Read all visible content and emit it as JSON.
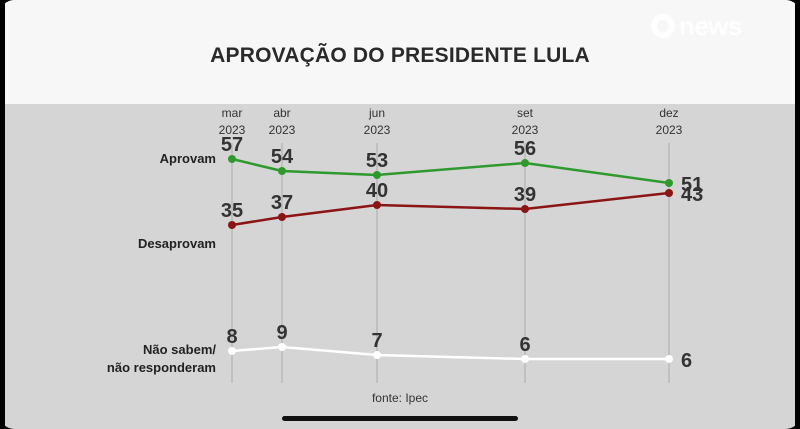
{
  "header": {
    "title": "APROVAÇÃO DO PRESIDENTE LULA",
    "logo_text": "news"
  },
  "source_label": "fonte: Ipec",
  "chart_data": {
    "type": "line",
    "title": "APROVAÇÃO DO PRESIDENTE LULA",
    "x": [
      {
        "month": "mar",
        "year": "2023"
      },
      {
        "month": "abr",
        "year": "2023"
      },
      {
        "month": "jun",
        "year": "2023"
      },
      {
        "month": "set",
        "year": "2023"
      },
      {
        "month": "dez",
        "year": "2023"
      }
    ],
    "series": [
      {
        "name": "Aprovam",
        "values": [
          57,
          54,
          53,
          56,
          51
        ],
        "color": "#2e9a2e"
      },
      {
        "name": "Desaprovam",
        "values": [
          35,
          37,
          40,
          39,
          43
        ],
        "color": "#8b1414"
      },
      {
        "name": "Não sabem/\nnão responderam",
        "values": [
          8,
          9,
          7,
          6,
          6
        ],
        "color": "#ffffff"
      }
    ],
    "grid": "vertical",
    "legend": "left"
  }
}
